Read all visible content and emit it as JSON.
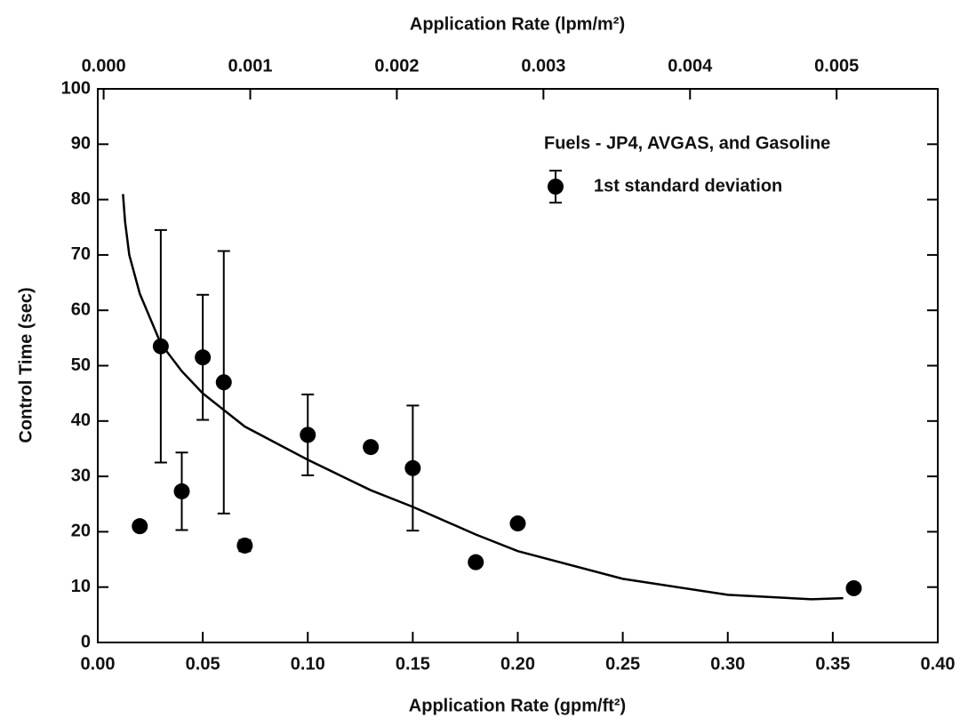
{
  "chart_data": {
    "type": "scatter",
    "title": "Application Rate (lpm/m²)",
    "xlabel": "Application Rate (gpm/ft²)",
    "ylabel": "Control Time (sec)",
    "legend_title": "Fuels - JP4, AVGAS, and Gasoline",
    "xlim": [
      0,
      0.4
    ],
    "xticks": [
      {
        "value": 0,
        "label": "0.00"
      },
      {
        "value": 0.05,
        "label": "0.05"
      },
      {
        "value": 0.1,
        "label": "0.10"
      },
      {
        "value": 0.15,
        "label": "0.15"
      },
      {
        "value": 0.2,
        "label": "0.20"
      },
      {
        "value": 0.25,
        "label": "0.25"
      },
      {
        "value": 0.3,
        "label": "0.30"
      },
      {
        "value": 0.35,
        "label": "0.35"
      },
      {
        "value": 0.4,
        "label": "0.40"
      }
    ],
    "x2lim": [
      -4e-05,
      0.00569
    ],
    "x2ticks": [
      {
        "value": 0,
        "label": "0.000"
      },
      {
        "value": 0.001,
        "label": "0.001"
      },
      {
        "value": 0.002,
        "label": "0.002"
      },
      {
        "value": 0.003,
        "label": "0.003"
      },
      {
        "value": 0.004,
        "label": "0.004"
      },
      {
        "value": 0.005,
        "label": "0.005"
      }
    ],
    "ylim": [
      0,
      100
    ],
    "yticks": [
      0,
      10,
      20,
      30,
      40,
      50,
      60,
      70,
      80,
      90,
      100
    ],
    "series": [
      {
        "name": "1st standard deviation",
        "color": "#000000",
        "x": [
          0.02,
          0.03,
          0.04,
          0.05,
          0.06,
          0.07,
          0.1,
          0.13,
          0.15,
          0.18,
          0.2,
          0.36
        ],
        "values": [
          21,
          53.5,
          27.3,
          51.5,
          47,
          17.5,
          37.5,
          35.3,
          31.5,
          14.5,
          21.5,
          9.8
        ],
        "errors": [
          null,
          21,
          7,
          11.3,
          23.7,
          1,
          7.3,
          null,
          11.3,
          null,
          null,
          null
        ]
      }
    ],
    "curve": {
      "color": "#000000",
      "x": [
        0.012,
        0.013,
        0.015,
        0.02,
        0.03,
        0.04,
        0.05,
        0.07,
        0.1,
        0.13,
        0.15,
        0.18,
        0.2,
        0.25,
        0.3,
        0.34,
        0.355
      ],
      "values": [
        81,
        76,
        70,
        63,
        54,
        49,
        45,
        39,
        33,
        27.5,
        24.5,
        19.5,
        16.5,
        11.5,
        8.6,
        7.8,
        8
      ]
    }
  }
}
